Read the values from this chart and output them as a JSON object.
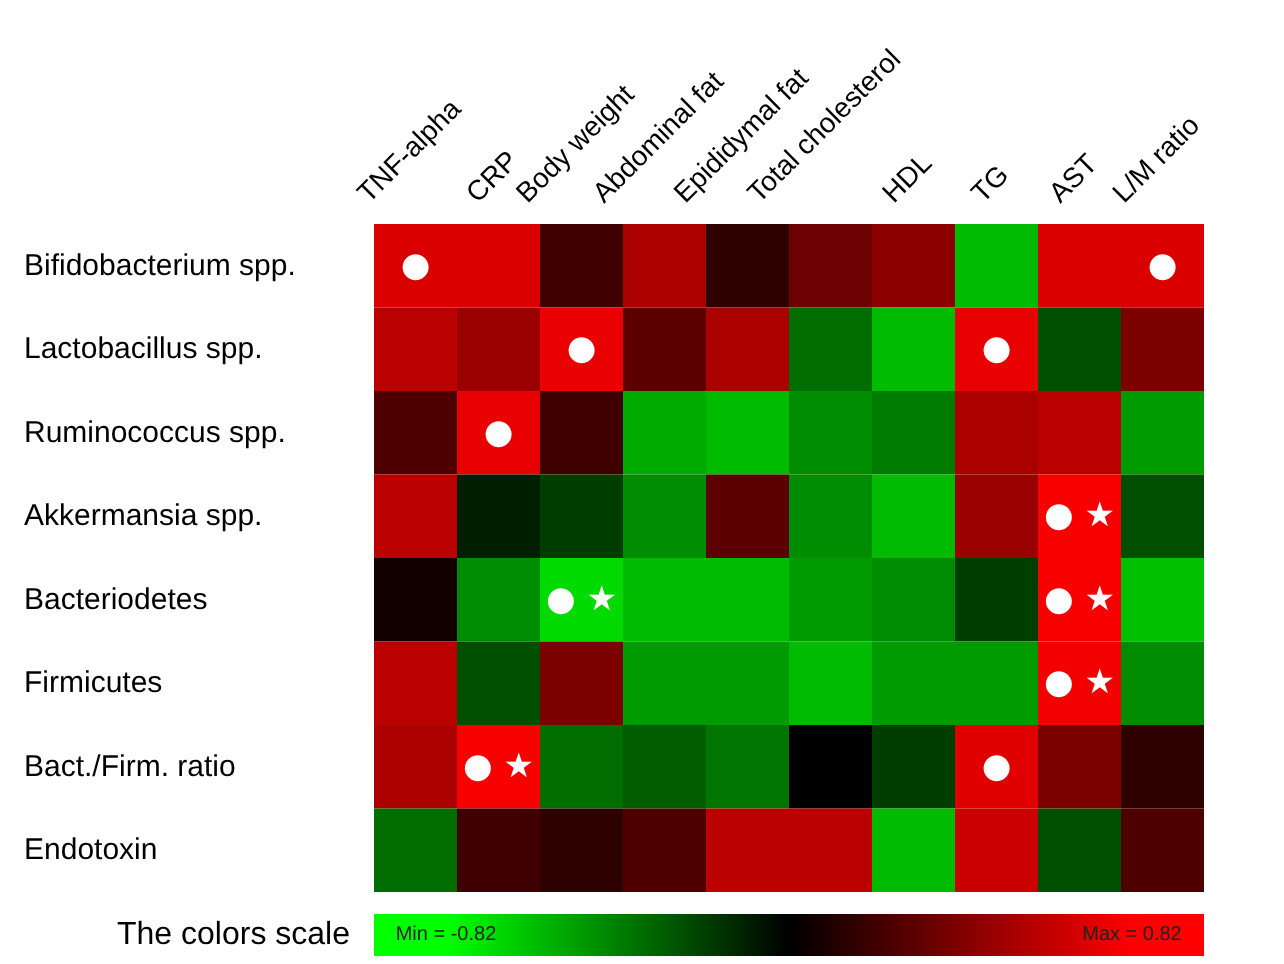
{
  "chart_data": {
    "type": "heatmap",
    "categories": [
      "TNF-alpha",
      "CRP",
      "Body weight",
      "Abdominal fat",
      "Epididymal fat",
      "Total cholesterol",
      "HDL",
      "TG",
      "AST",
      "L/M ratio"
    ],
    "y_categories": [
      "Bifidobacterium spp.",
      "Lactobacillus spp.",
      "Ruminococcus spp.",
      "Akkermansia spp.",
      "Bacteriodetes",
      "Firmicutes",
      "Bact./Firm. ratio",
      "Endotoxin"
    ],
    "cells": [
      [
        0.7,
        0.7,
        0.2,
        0.55,
        0.15,
        0.35,
        0.45,
        -0.6,
        0.7,
        0.7
      ],
      [
        0.6,
        0.5,
        0.75,
        0.3,
        0.55,
        -0.35,
        -0.6,
        0.75,
        -0.25,
        0.4
      ],
      [
        0.25,
        0.75,
        0.2,
        -0.55,
        -0.6,
        -0.45,
        -0.4,
        0.55,
        0.6,
        -0.5
      ],
      [
        0.6,
        -0.1,
        -0.2,
        -0.45,
        0.3,
        -0.45,
        -0.6,
        0.5,
        0.8,
        -0.25
      ],
      [
        0.05,
        -0.45,
        -0.7,
        -0.6,
        -0.6,
        -0.5,
        -0.45,
        -0.2,
        0.8,
        -0.62
      ],
      [
        0.6,
        -0.25,
        0.4,
        -0.5,
        -0.5,
        -0.6,
        -0.5,
        -0.5,
        0.78,
        -0.45
      ],
      [
        0.55,
        0.8,
        -0.35,
        -0.3,
        -0.38,
        0,
        -0.2,
        0.72,
        0.4,
        0.15
      ],
      [
        -0.35,
        0.2,
        0.15,
        0.25,
        0.6,
        0.6,
        -0.6,
        0.65,
        -0.25,
        0.25
      ]
    ],
    "cell_labels": [
      [
        "●",
        null,
        null,
        null,
        null,
        null,
        null,
        null,
        null,
        "●"
      ],
      [
        null,
        null,
        "●",
        null,
        null,
        null,
        null,
        "●",
        null,
        null
      ],
      [
        null,
        "●",
        null,
        null,
        null,
        null,
        null,
        null,
        null,
        null
      ],
      [
        null,
        null,
        null,
        null,
        null,
        null,
        null,
        null,
        "● ★",
        null
      ],
      [
        null,
        null,
        "● ★",
        null,
        null,
        null,
        null,
        null,
        "● ★",
        null
      ],
      [
        null,
        null,
        null,
        null,
        null,
        null,
        null,
        null,
        "● ★",
        null
      ],
      [
        null,
        "● ★",
        null,
        null,
        null,
        null,
        null,
        "●",
        null,
        null
      ],
      [
        null,
        null,
        null,
        null,
        null,
        null,
        null,
        null,
        null,
        null
      ]
    ],
    "clabel": "The colors scale",
    "clim": [
      -0.82,
      0.82
    ],
    "cticks": [
      {
        "value": -0.82,
        "label": "Min = -0.82"
      },
      {
        "value": 0.82,
        "label": "Max = 0.82"
      }
    ]
  }
}
